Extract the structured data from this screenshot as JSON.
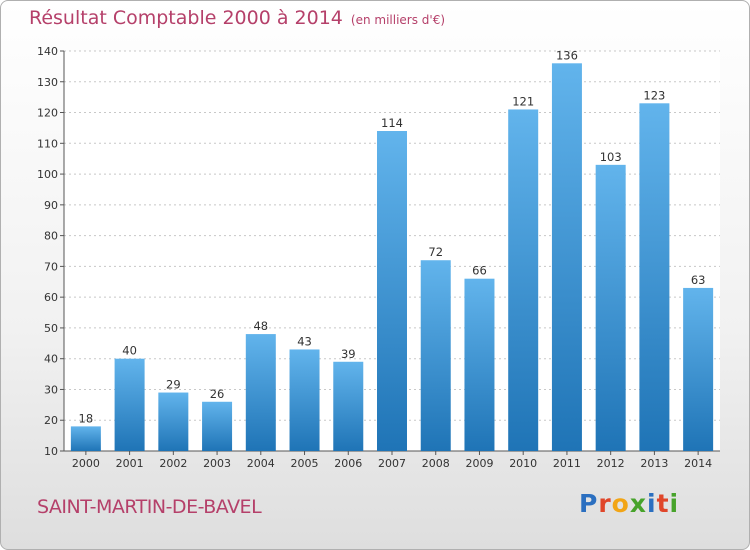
{
  "header": {
    "title": "Résultat Comptable 2000 à 2014",
    "unit": "(en milliers d'€)"
  },
  "footer": {
    "commune": "SAINT-MARTIN-DE-BAVEL",
    "logo_letters": [
      "P",
      "r",
      "o",
      "x",
      "i",
      "t",
      "i"
    ],
    "logo_colors": [
      "#2b6fc0",
      "#e0462a",
      "#f2a516",
      "#47a32b",
      "#2b6fc0",
      "#e0462a",
      "#47a32b"
    ]
  },
  "colors": {
    "bar_top": "#62b4ec",
    "bar_bottom": "#1f74b6",
    "accent": "#b5406a"
  },
  "chart_data": {
    "type": "bar",
    "categories": [
      "2000",
      "2001",
      "2002",
      "2003",
      "2004",
      "2005",
      "2006",
      "2007",
      "2008",
      "2009",
      "2010",
      "2011",
      "2012",
      "2013",
      "2014"
    ],
    "values": [
      18,
      40,
      29,
      26,
      48,
      43,
      39,
      114,
      72,
      66,
      121,
      136,
      103,
      123,
      63
    ],
    "yticks": [
      10,
      20,
      30,
      40,
      50,
      60,
      70,
      80,
      90,
      100,
      110,
      120,
      130,
      140
    ],
    "ylim": [
      10,
      140
    ],
    "grid": true,
    "title": "Résultat Comptable 2000 à 2014",
    "xlabel": "",
    "ylabel": ""
  }
}
